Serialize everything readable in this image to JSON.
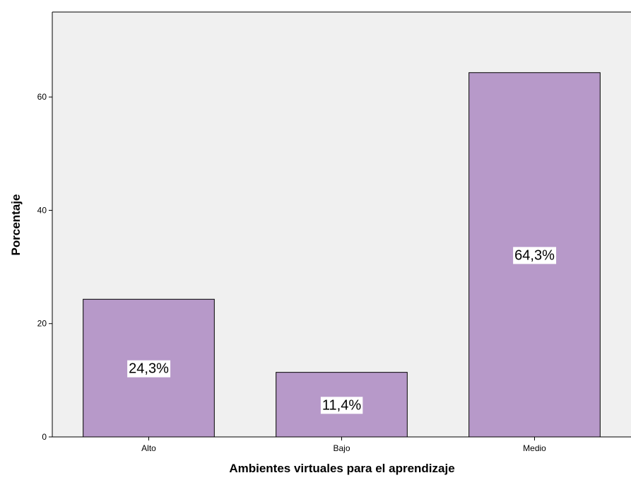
{
  "chart_data": {
    "type": "bar",
    "title": "",
    "xlabel": "Ambientes virtuales para el aprendizaje",
    "ylabel": "Porcentaje",
    "categories": [
      "Alto",
      "Bajo",
      "Medio"
    ],
    "values": [
      24.3,
      11.4,
      64.3
    ],
    "data_labels": [
      "24,3%",
      "11,4%",
      "64,3%"
    ],
    "ylim": [
      0,
      75
    ],
    "yticks": [
      0,
      20,
      40,
      60
    ],
    "ytick_labels": [
      "0",
      "20",
      "40",
      "60"
    ],
    "grid": false,
    "legend": "none",
    "colors": {
      "bar_fill": "#b799c9",
      "bar_stroke": "#000000",
      "plot_background": "#f0f0f0",
      "label_background": "#ffffff"
    }
  }
}
